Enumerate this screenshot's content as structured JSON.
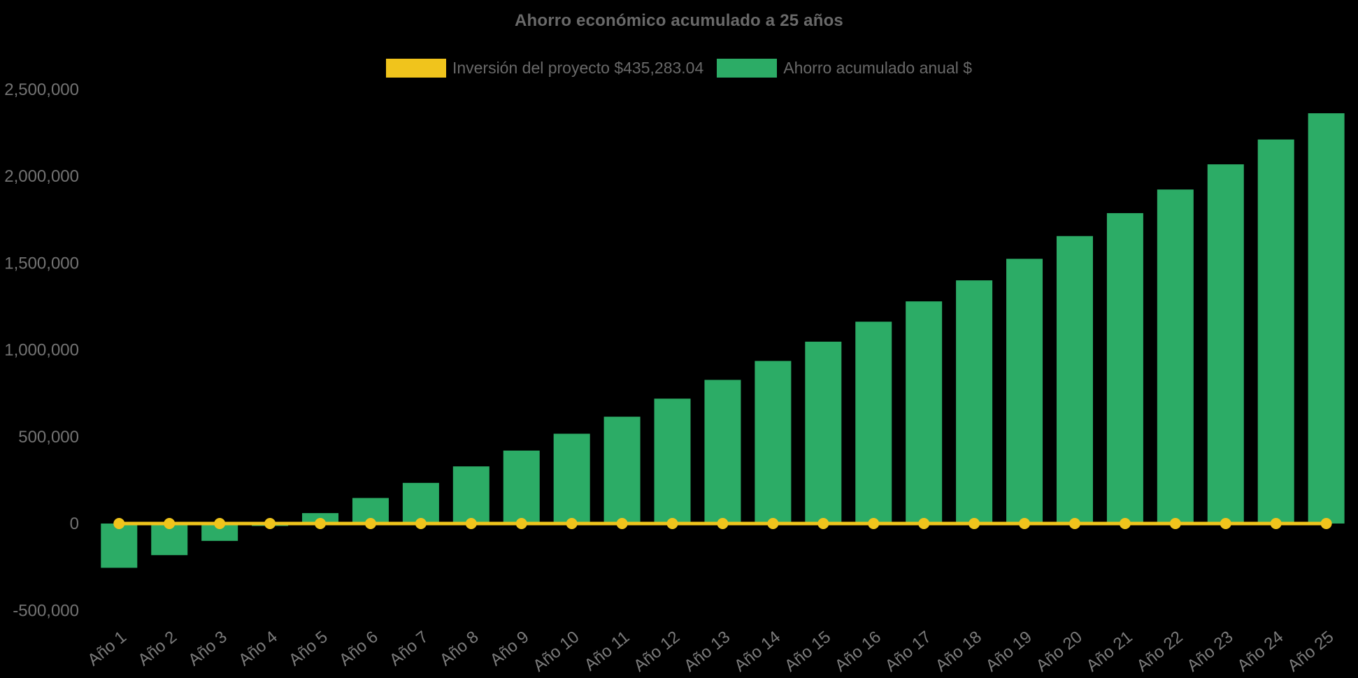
{
  "chart_data": {
    "type": "bar",
    "title": "Ahorro económico acumulado a 25 años",
    "categories": [
      "Año 1",
      "Año 2",
      "Año 3",
      "Año 4",
      "Año 5",
      "Año 6",
      "Año 7",
      "Año 8",
      "Año 9",
      "Año 10",
      "Año 11",
      "Año 12",
      "Año 13",
      "Año 14",
      "Año 15",
      "Año 16",
      "Año 17",
      "Año 18",
      "Año 19",
      "Año 20",
      "Año 21",
      "Año 22",
      "Año 23",
      "Año 24",
      "Año 25"
    ],
    "series": [
      {
        "name": "Inversión del proyecto $435,283.04",
        "type": "line",
        "color": "#F0C41C",
        "marker": "circle",
        "values": [
          0,
          0,
          0,
          0,
          0,
          0,
          0,
          0,
          0,
          0,
          0,
          0,
          0,
          0,
          0,
          0,
          0,
          0,
          0,
          0,
          0,
          0,
          0,
          0,
          0
        ]
      },
      {
        "name": "Ahorro acumulado anual $",
        "type": "column",
        "color": "#2CAC66",
        "values": [
          -255000,
          -182000,
          -100000,
          -14000,
          60000,
          147000,
          234000,
          329000,
          420000,
          517000,
          615000,
          719000,
          827000,
          936000,
          1047000,
          1162000,
          1279000,
          1400000,
          1524000,
          1655000,
          1787000,
          1923000,
          2068000,
          2211000,
          2362000
        ]
      }
    ],
    "yticks": [
      2500000,
      2000000,
      1500000,
      1000000,
      500000,
      0,
      -500000
    ],
    "ylim": [
      -500000,
      2500000
    ],
    "xlabel": "",
    "ylabel": "",
    "grid": false,
    "legend_position": "top",
    "background_color": "#000000",
    "title_color": "#696969",
    "axis_label_color": "#737373"
  }
}
